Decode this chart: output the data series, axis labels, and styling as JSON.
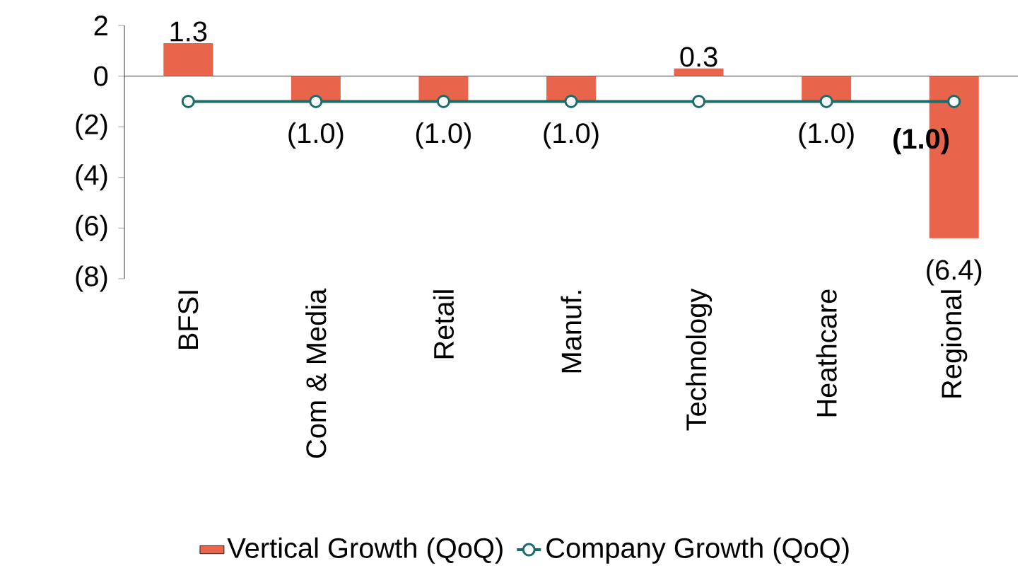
{
  "chart_data": {
    "type": "bar",
    "categories": [
      "BFSI",
      "Com & Media",
      "Retail",
      "Manuf.",
      "Technology",
      "Heathcare",
      "Regional"
    ],
    "series": [
      {
        "name": "Vertical Growth (QoQ)",
        "color": "#e8644a",
        "values": [
          1.3,
          -1.0,
          -1.0,
          -1.0,
          0.3,
          -1.0,
          -6.4
        ],
        "value_labels": [
          "1.3",
          "(1.0)",
          "(1.0)",
          "(1.0)",
          "0.3",
          "(1.0)",
          "(6.4)"
        ]
      },
      {
        "name": "Company Growth (QoQ)",
        "type": "line",
        "color": "#1b6b6b",
        "values": [
          -1.0,
          -1.0,
          -1.0,
          -1.0,
          -1.0,
          -1.0,
          -1.0
        ],
        "value_labels": [
          null,
          null,
          null,
          null,
          null,
          null,
          "**(1.0)**"
        ]
      }
    ],
    "ylim": [
      -8,
      2
    ],
    "yticks": [
      2,
      0,
      {
        "value": -2,
        "label": "(2)"
      },
      {
        "value": -4,
        "label": "(4)"
      },
      {
        "value": -6,
        "label": "(6)"
      },
      {
        "value": -8,
        "label": "(8)"
      }
    ],
    "legend": "bottom",
    "marker": "circle"
  }
}
